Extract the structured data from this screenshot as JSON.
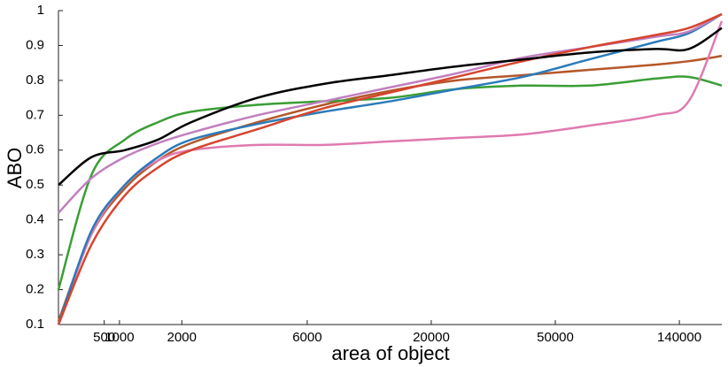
{
  "chart_data": {
    "type": "line",
    "x_label": "area of object",
    "y_label": "ABO",
    "x": [
      0,
      0.05,
      0.1,
      0.15,
      0.2,
      0.3,
      0.4,
      0.5,
      0.6,
      0.7,
      0.8,
      0.9,
      0.95,
      1
    ],
    "xlim": [
      0,
      1
    ],
    "xticks": [
      {
        "value": 0.069,
        "label": "500"
      },
      {
        "value": 0.092,
        "label": "1000"
      },
      {
        "value": 0.186,
        "label": "2000"
      },
      {
        "value": 0.375,
        "label": "6000"
      },
      {
        "value": 0.562,
        "label": "20000"
      },
      {
        "value": 0.749,
        "label": "50000"
      },
      {
        "value": 0.936,
        "label": "140000"
      }
    ],
    "ylim": [
      0.1,
      1
    ],
    "yticks": [
      0.1,
      0.2,
      0.3,
      0.4,
      0.5,
      0.6,
      0.7,
      0.8,
      0.9,
      1
    ],
    "grid": false,
    "series": [
      {
        "color": "#b5572a",
        "values": [
          0.11,
          0.36,
          0.49,
          0.57,
          0.62,
          0.68,
          0.73,
          0.77,
          0.8,
          0.815,
          0.83,
          0.845,
          0.855,
          0.87
        ]
      },
      {
        "color": "#3a9e35",
        "values": [
          0.2,
          0.53,
          0.63,
          0.68,
          0.71,
          0.73,
          0.74,
          0.75,
          0.775,
          0.785,
          0.785,
          0.805,
          0.81,
          0.785
        ]
      },
      {
        "color": "#e07ab0",
        "values": [
          0.1,
          0.36,
          0.5,
          0.57,
          0.6,
          0.615,
          0.615,
          0.625,
          0.635,
          0.645,
          0.67,
          0.7,
          0.74,
          0.97
        ]
      },
      {
        "color": "#2b7bba",
        "values": [
          0.1,
          0.37,
          0.5,
          0.58,
          0.63,
          0.675,
          0.71,
          0.74,
          0.775,
          0.81,
          0.86,
          0.91,
          0.935,
          0.99
        ]
      },
      {
        "color": "#c17fc0",
        "values": [
          0.42,
          0.52,
          0.58,
          0.62,
          0.65,
          0.7,
          0.74,
          0.78,
          0.82,
          0.865,
          0.895,
          0.925,
          0.94,
          0.99
        ]
      },
      {
        "color": "#d6452f",
        "values": [
          0.1,
          0.33,
          0.47,
          0.55,
          0.6,
          0.66,
          0.72,
          0.765,
          0.81,
          0.855,
          0.895,
          0.93,
          0.95,
          0.99
        ]
      },
      {
        "color": "#000000",
        "values": [
          0.5,
          0.58,
          0.6,
          0.63,
          0.68,
          0.75,
          0.79,
          0.815,
          0.84,
          0.86,
          0.88,
          0.89,
          0.89,
          0.95
        ]
      }
    ]
  }
}
